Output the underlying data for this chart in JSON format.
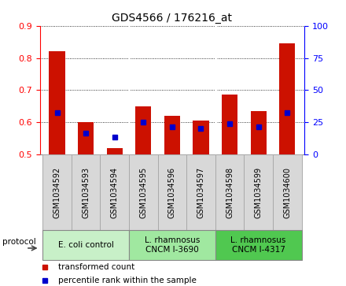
{
  "title": "GDS4566 / 176216_at",
  "samples": [
    "GSM1034592",
    "GSM1034593",
    "GSM1034594",
    "GSM1034595",
    "GSM1034596",
    "GSM1034597",
    "GSM1034598",
    "GSM1034599",
    "GSM1034600"
  ],
  "red_values": [
    0.82,
    0.6,
    0.52,
    0.65,
    0.62,
    0.605,
    0.685,
    0.635,
    0.845
  ],
  "blue_values": [
    0.63,
    0.565,
    0.555,
    0.6,
    0.585,
    0.58,
    0.595,
    0.585,
    0.63
  ],
  "ylim_left": [
    0.5,
    0.9
  ],
  "ylim_right": [
    0,
    100
  ],
  "yticks_left": [
    0.5,
    0.6,
    0.7,
    0.8,
    0.9
  ],
  "yticks_right": [
    0,
    25,
    50,
    75,
    100
  ],
  "groups": [
    {
      "label": "E. coli control",
      "start": 0,
      "end": 3,
      "color": "#c8f0c8"
    },
    {
      "label": "L. rhamnosus\nCNCM I-3690",
      "start": 3,
      "end": 6,
      "color": "#a0e8a0"
    },
    {
      "label": "L. rhamnosus\nCNCM I-4317",
      "start": 6,
      "end": 9,
      "color": "#50c850"
    }
  ],
  "bar_width": 0.55,
  "bar_bottom": 0.5,
  "red_color": "#cc1100",
  "blue_color": "#0000cc",
  "blue_size": 5,
  "legend_red": "transformed count",
  "legend_blue": "percentile rank within the sample",
  "sample_bg": "#d8d8d8",
  "sample_edge": "#aaaaaa"
}
